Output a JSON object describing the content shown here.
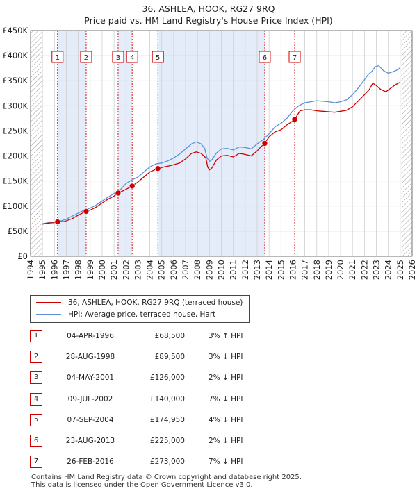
{
  "title_line1": "36, ASHLEA, HOOK, RG27 9RQ",
  "title_line2": "Price paid vs. HM Land Registry's House Price Index (HPI)",
  "colors": {
    "property": "#cc0000",
    "hpi": "#5b8fd6",
    "shade": "#e3ecf8",
    "grid": "#d0d0d0",
    "marker_line": "#cc0000"
  },
  "chart_data": {
    "type": "line",
    "title": "Price paid vs. HM Land Registry's House Price Index (HPI)",
    "xlabel": "",
    "ylabel": "",
    "xlim": [
      1994,
      2026
    ],
    "ylim": [
      0,
      450000
    ],
    "x_ticks": [
      1994,
      1995,
      1996,
      1997,
      1998,
      1999,
      2000,
      2001,
      2002,
      2003,
      2004,
      2005,
      2006,
      2007,
      2008,
      2009,
      2010,
      2011,
      2012,
      2013,
      2014,
      2015,
      2016,
      2017,
      2018,
      2019,
      2020,
      2021,
      2022,
      2023,
      2024,
      2025,
      2026
    ],
    "y_ticks": [
      {
        "value": 0,
        "label": "£0"
      },
      {
        "value": 50000,
        "label": "£50K"
      },
      {
        "value": 100000,
        "label": "£100K"
      },
      {
        "value": 150000,
        "label": "£150K"
      },
      {
        "value": 200000,
        "label": "£200K"
      },
      {
        "value": 250000,
        "label": "£250K"
      },
      {
        "value": 300000,
        "label": "£300K"
      },
      {
        "value": 350000,
        "label": "£350K"
      },
      {
        "value": 400000,
        "label": "£400K"
      },
      {
        "value": 450000,
        "label": "£450K"
      }
    ],
    "hatched_ranges": [
      [
        1994,
        1995.0
      ],
      [
        2025.1,
        2026
      ]
    ],
    "series": [
      {
        "name": "36, ASHLEA, HOOK, RG27 9RQ (terraced house)",
        "color": "#cc0000",
        "x": [
          1995.0,
          1995.5,
          1996.0,
          1996.26,
          1996.8,
          1997.5,
          1998.0,
          1998.66,
          1999.0,
          1999.5,
          2000.0,
          2000.5,
          2001.0,
          2001.34,
          2001.8,
          2002.2,
          2002.52,
          2003.0,
          2003.5,
          2004.0,
          2004.68,
          2005.2,
          2005.8,
          2006.5,
          2007.0,
          2007.5,
          2007.9,
          2008.3,
          2008.7,
          2008.85,
          2009.0,
          2009.2,
          2009.6,
          2010.0,
          2010.5,
          2011.0,
          2011.5,
          2012.0,
          2012.5,
          2013.0,
          2013.3,
          2013.64,
          2014.0,
          2014.5,
          2015.0,
          2015.5,
          2016.0,
          2016.15,
          2016.6,
          2017.0,
          2017.5,
          2018.0,
          2018.5,
          2019.0,
          2019.5,
          2020.0,
          2020.5,
          2021.0,
          2021.5,
          2022.0,
          2022.4,
          2022.7,
          2023.0,
          2023.4,
          2023.8,
          2024.2,
          2024.6,
          2025.0
        ],
        "values": [
          64000,
          66000,
          67000,
          68500,
          69000,
          75000,
          82000,
          89500,
          92000,
          98000,
          106000,
          114000,
          120000,
          126000,
          131000,
          136000,
          140000,
          148000,
          158000,
          168000,
          174950,
          178000,
          181000,
          186000,
          194000,
          205000,
          208000,
          205000,
          196000,
          178000,
          172000,
          176000,
          192000,
          200000,
          201000,
          198000,
          205000,
          203000,
          200000,
          210000,
          218000,
          225000,
          238000,
          248000,
          252000,
          262000,
          270000,
          273000,
          290000,
          292000,
          292000,
          290000,
          289000,
          288000,
          287000,
          289000,
          291000,
          298000,
          310000,
          322000,
          332000,
          345000,
          340000,
          332000,
          328000,
          335000,
          342000,
          347000
        ]
      },
      {
        "name": "HPI: Average price, terraced house, Hart",
        "color": "#5b8fd6",
        "x": [
          1995.0,
          1995.5,
          1996.0,
          1996.5,
          1997.0,
          1997.5,
          1998.0,
          1998.5,
          1999.0,
          1999.5,
          2000.0,
          2000.5,
          2001.0,
          2001.5,
          2002.0,
          2002.5,
          2003.0,
          2003.5,
          2004.0,
          2004.5,
          2005.0,
          2005.5,
          2006.0,
          2006.5,
          2007.0,
          2007.5,
          2007.9,
          2008.3,
          2008.6,
          2008.8,
          2009.0,
          2009.2,
          2009.6,
          2010.0,
          2010.5,
          2011.0,
          2011.5,
          2012.0,
          2012.5,
          2013.0,
          2013.5,
          2014.0,
          2014.5,
          2015.0,
          2015.5,
          2016.0,
          2016.5,
          2017.0,
          2017.5,
          2018.0,
          2018.5,
          2019.0,
          2019.5,
          2020.0,
          2020.5,
          2021.0,
          2021.5,
          2022.0,
          2022.3,
          2022.6,
          2022.9,
          2023.2,
          2023.6,
          2024.0,
          2024.4,
          2024.8,
          2025.0
        ],
        "values": [
          65000,
          67000,
          68000,
          70000,
          74000,
          80000,
          86000,
          92000,
          96000,
          102000,
          110000,
          118000,
          125000,
          132000,
          145000,
          152000,
          158000,
          168000,
          178000,
          184000,
          186000,
          190000,
          196000,
          204000,
          214000,
          224000,
          228000,
          224000,
          215000,
          196000,
          189000,
          192000,
          206000,
          214000,
          215000,
          212000,
          218000,
          217000,
          214000,
          224000,
          232000,
          244000,
          258000,
          265000,
          275000,
          290000,
          300000,
          306000,
          308000,
          310000,
          309000,
          308000,
          306000,
          308000,
          312000,
          322000,
          336000,
          352000,
          362000,
          368000,
          378000,
          380000,
          370000,
          365000,
          368000,
          372000,
          376000
        ]
      }
    ],
    "sales": [
      {
        "id": "1",
        "x": 1996.26,
        "value": 68500
      },
      {
        "id": "2",
        "x": 1998.66,
        "value": 89500
      },
      {
        "id": "3",
        "x": 2001.34,
        "value": 126000
      },
      {
        "id": "4",
        "x": 2002.52,
        "value": 140000
      },
      {
        "id": "5",
        "x": 2004.68,
        "value": 174950
      },
      {
        "id": "6",
        "x": 2013.64,
        "value": 225000
      },
      {
        "id": "7",
        "x": 2016.15,
        "value": 273000
      }
    ]
  },
  "legend": {
    "property_label": "36, ASHLEA, HOOK, RG27 9RQ (terraced house)",
    "hpi_label": "HPI: Average price, terraced house, Hart"
  },
  "events": [
    {
      "num": "1",
      "date": "04-APR-1996",
      "price": "£68,500",
      "hpi": "3% ↑ HPI"
    },
    {
      "num": "2",
      "date": "28-AUG-1998",
      "price": "£89,500",
      "hpi": "3% ↓ HPI"
    },
    {
      "num": "3",
      "date": "04-MAY-2001",
      "price": "£126,000",
      "hpi": "2% ↓ HPI"
    },
    {
      "num": "4",
      "date": "09-JUL-2002",
      "price": "£140,000",
      "hpi": "7% ↓ HPI"
    },
    {
      "num": "5",
      "date": "07-SEP-2004",
      "price": "£174,950",
      "hpi": "4% ↓ HPI"
    },
    {
      "num": "6",
      "date": "23-AUG-2013",
      "price": "£225,000",
      "hpi": "2% ↓ HPI"
    },
    {
      "num": "7",
      "date": "26-FEB-2016",
      "price": "£273,000",
      "hpi": "7% ↓ HPI"
    }
  ],
  "footer_line1": "Contains HM Land Registry data © Crown copyright and database right 2025.",
  "footer_line2": "This data is licensed under the Open Government Licence v3.0."
}
